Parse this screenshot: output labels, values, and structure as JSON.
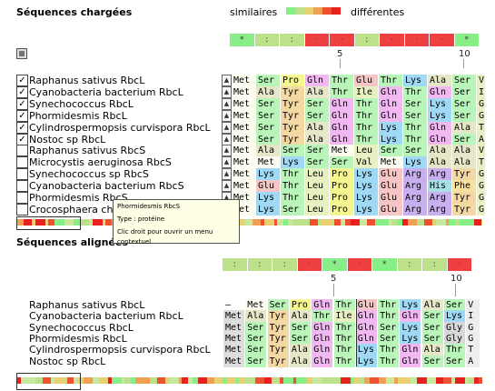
{
  "loaded_title": "Séquences chargées",
  "aligned_title": "Séquences alignées",
  "legend": {
    "similar": "similaires",
    "different": "différentes",
    "colors": [
      "#88ee88",
      "#bde08a",
      "#e8d070",
      "#f0a050",
      "#ee5030",
      "#e82020"
    ]
  },
  "ruler_top": {
    "five": "5",
    "ten": "10"
  },
  "ruler_bottom": {
    "five": "5",
    "ten": "10"
  },
  "consensus_top": [
    "*",
    ":",
    ":",
    "·",
    "·",
    ":",
    "·",
    "·",
    "·",
    "*"
  ],
  "consensus_bottom": [
    ":",
    ":",
    ":",
    "·",
    "*",
    "·",
    "*",
    ":",
    ":",
    "·"
  ],
  "loaded_sequences": [
    {
      "name": "Raphanus sativus RbcL",
      "checked": true,
      "residues": [
        "Met",
        "Ser",
        "Pro",
        "Gln",
        "Thr",
        "Glu",
        "Thr",
        "Lys",
        "Ala",
        "Ser",
        "V"
      ]
    },
    {
      "name": "Cyanobacteria bacterium RbcL",
      "checked": true,
      "residues": [
        "Met",
        "Ala",
        "Tyr",
        "Ala",
        "Thr",
        "Ile",
        "Gln",
        "Thr",
        "Gln",
        "Ser",
        "I"
      ]
    },
    {
      "name": "Synechococcus RbcL",
      "checked": true,
      "residues": [
        "Met",
        "Ser",
        "Tyr",
        "Ser",
        "Gln",
        "Thr",
        "Gln",
        "Ser",
        "Lys",
        "Ser",
        "G"
      ]
    },
    {
      "name": "Phormidesmis RbcL",
      "checked": true,
      "residues": [
        "Met",
        "Ser",
        "Tyr",
        "Ser",
        "Gln",
        "Thr",
        "Gln",
        "Ser",
        "Lys",
        "Ser",
        "G"
      ]
    },
    {
      "name": "Cylindrospermopsis curvispora RbcL",
      "checked": true,
      "residues": [
        "Met",
        "Ser",
        "Tyr",
        "Ala",
        "Gln",
        "Thr",
        "Lys",
        "Thr",
        "Gln",
        "Ala",
        "T"
      ]
    },
    {
      "name": "Nostoc sp RbcL",
      "checked": true,
      "residues": [
        "Met",
        "Ser",
        "Tyr",
        "Ala",
        "Gln",
        "Thr",
        "Lys",
        "Thr",
        "Gln",
        "Ser",
        "A"
      ]
    },
    {
      "name": "Raphanus sativus RbcS",
      "checked": false,
      "residues": [
        "Met",
        "Ala",
        "Ser",
        "Ser",
        "Met",
        "Leu",
        "Ser",
        "Ser",
        "Ala",
        "Ala",
        "V"
      ]
    },
    {
      "name": "Microcystis aeruginosa RbcS",
      "checked": false,
      "residues": [
        "Met",
        "Met",
        "Lys",
        "Ser",
        "Ser",
        "Val",
        "Met",
        "Lys",
        "Ala",
        "Ala",
        "T"
      ]
    },
    {
      "name": "Synechococcus sp RbcS",
      "checked": false,
      "residues": [
        "Met",
        "Lys",
        "Thr",
        "Leu",
        "Pro",
        "Lys",
        "Glu",
        "Arg",
        "Arg",
        "Tyr",
        "G"
      ]
    },
    {
      "name": "Cyanobacteria bacterium RbcS",
      "checked": false,
      "residues": [
        "Met",
        "Glu",
        "Thr",
        "Leu",
        "Pro",
        "Lys",
        "Glu",
        "Arg",
        "His",
        "Phe",
        "G"
      ]
    },
    {
      "name": "Phormidesmis RbcS",
      "checked": false,
      "residues": [
        "Met",
        "Lys",
        "Thr",
        "Leu",
        "Pro",
        "Lys",
        "Glu",
        "Arg",
        "Arg",
        "Tyr",
        "G"
      ]
    },
    {
      "name": "Crocosphaera chw",
      "checked": false,
      "residues": [
        "Met",
        "Lys",
        "Ser",
        "Leu",
        "Pro",
        "Lys",
        "Glu",
        "Arg",
        "Arg",
        "Tyr",
        "G"
      ]
    }
  ],
  "aligned_sequences": [
    {
      "name": "Raphanus sativus RbcL",
      "residues": [
        "–",
        "Met",
        "Ser",
        "Pro",
        "Gln",
        "Thr",
        "Glu",
        "Thr",
        "Lys",
        "Ala",
        "Ser",
        "V"
      ]
    },
    {
      "name": "Cyanobacteria bacterium RbcL",
      "residues": [
        "Met",
        "Ala",
        "Tyr",
        "Ala",
        "Thr",
        "Ile",
        "Gln",
        "Thr",
        "Gln",
        "Ser",
        "Lys",
        "I"
      ]
    },
    {
      "name": "Synechococcus RbcL",
      "residues": [
        "Met",
        "Ser",
        "Tyr",
        "Ser",
        "Gln",
        "Thr",
        "Gln",
        "Ser",
        "Lys",
        "Ser",
        "Gly",
        "G"
      ]
    },
    {
      "name": "Phormidesmis RbcL",
      "residues": [
        "Met",
        "Ser",
        "Tyr",
        "Ser",
        "Gln",
        "Thr",
        "Gln",
        "Ser",
        "Lys",
        "Ser",
        "Gly",
        "G"
      ]
    },
    {
      "name": "Cylindrospermopsis curvispora RbcL",
      "residues": [
        "Met",
        "Ser",
        "Tyr",
        "Ala",
        "Gln",
        "Thr",
        "Lys",
        "Thr",
        "Gln",
        "Ala",
        "Thr",
        "T"
      ]
    },
    {
      "name": "Nostoc sp RbcL",
      "residues": [
        "Met",
        "Ser",
        "Tyr",
        "Ala",
        "Gln",
        "Thr",
        "Lys",
        "Thr",
        "Gln",
        "Ser",
        "Ser",
        "A"
      ]
    }
  ],
  "tooltip": {
    "title": "Phormidesmis RbcS",
    "type": "Type : protéine",
    "hint": "Clic droit pour ouvrir un menu contextuel"
  },
  "residue_colors": {
    "Met": "#fbfbf0",
    "Ser": "#b9f5b9",
    "Pro": "#f6f690",
    "Gln": "#f2b8f2",
    "Thr": "#b9f5b9",
    "Glu": "#f6c6c6",
    "Lys": "#9fd9f6",
    "Ala": "#e6e6c8",
    "Tyr": "#f4d8a4",
    "Ile": "#e6f0c0",
    "Leu": "#e6f0c0",
    "Val": "#e6f0c0",
    "Arg": "#c8b0f0",
    "His": "#a8e0e8",
    "Phe": "#f8e0a0",
    "Gly": "#d8d8d8",
    "–": "#ffffff"
  }
}
